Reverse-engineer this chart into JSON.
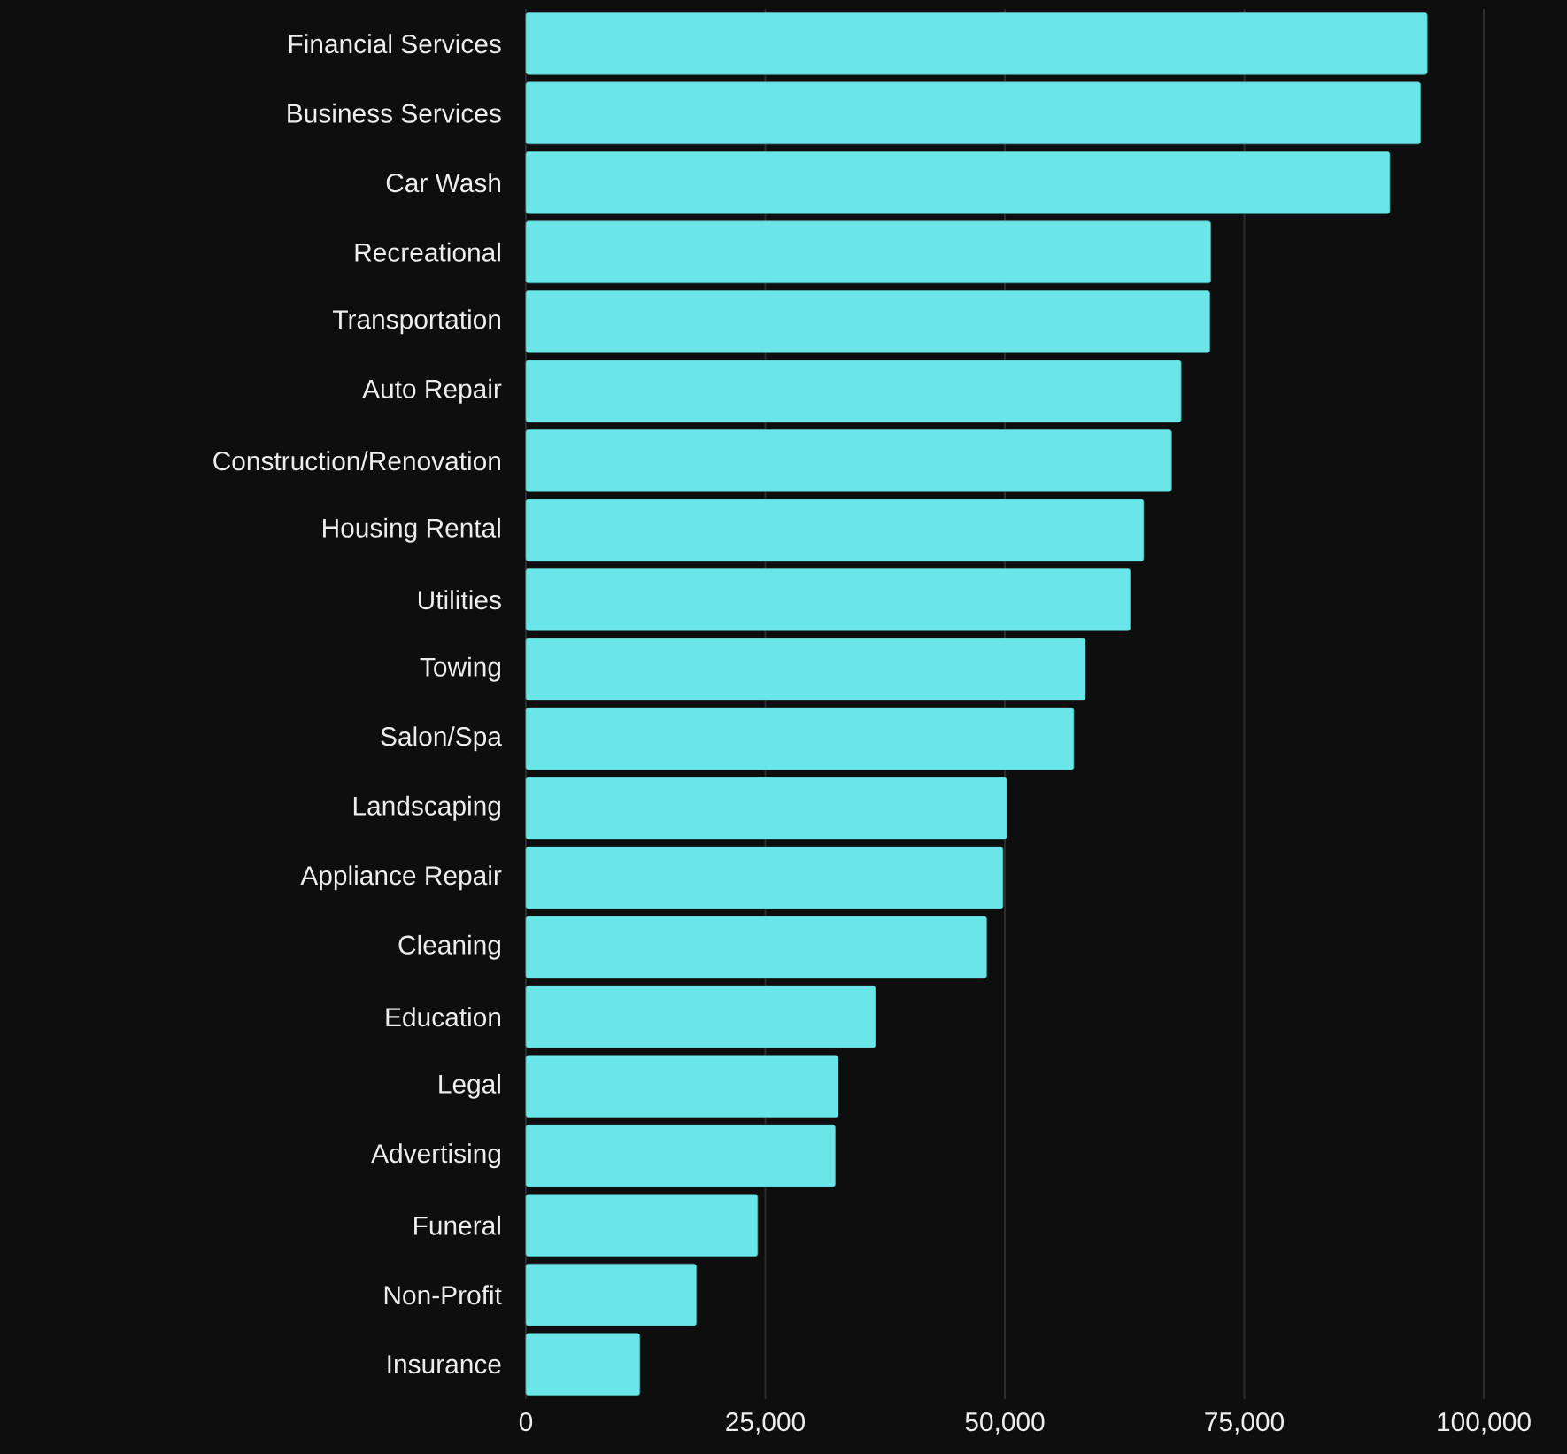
{
  "chart_data": {
    "type": "bar",
    "orientation": "horizontal",
    "categories": [
      "Financial Services",
      "Business Services",
      "Car Wash",
      "Recreational",
      "Transportation",
      "Auto Repair",
      "Construction/Renovation",
      "Housing Rental",
      "Utilities",
      "Towing",
      "Salon/Spa",
      "Landscaping",
      "Appliance Repair",
      "Cleaning",
      "Education",
      "Legal",
      "Advertising",
      "Funeral",
      "Non-Profit",
      "Insurance"
    ],
    "values": [
      94100,
      93400,
      90200,
      71500,
      71400,
      68400,
      67400,
      64500,
      63100,
      58400,
      57200,
      50200,
      49800,
      48100,
      36500,
      32600,
      32300,
      24200,
      17800,
      11900
    ],
    "color": "#6be6e8",
    "xlim": [
      0,
      100000
    ],
    "xticks": [
      {
        "value": 0,
        "label": "0"
      },
      {
        "value": 25000,
        "label": "25,000"
      },
      {
        "value": 50000,
        "label": "50,000"
      },
      {
        "value": 75000,
        "label": "75,000"
      },
      {
        "value": 100000,
        "label": "100,000"
      }
    ],
    "grid": "x"
  }
}
